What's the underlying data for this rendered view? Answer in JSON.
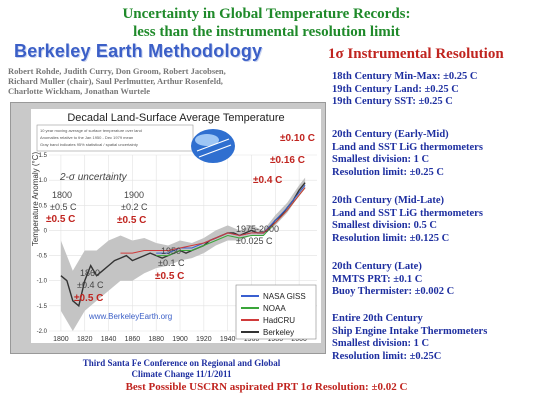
{
  "title_line1": "Uncertainty in Global Temperature Records:",
  "title_line2": "less than the instrumental resolution limit",
  "methodology": "Berkeley Earth Methodology",
  "authors": [
    "Robert Rohde, Judith Curry, Don Groom, Robert Jacobsen,",
    "Richard Muller (chair), Saul Perlmutter, Arthur Rosenfeld,",
    "Charlotte Wickham, Jonathan Wurtele"
  ],
  "chart": {
    "title": "Decadal Land-Surface Average Temperature",
    "ylabel": "Temperature Anomaly (°C)",
    "info_lines": [
      "10 year moving average of surface temperature over land",
      "Anomalies relative to the Jan 1950 - Dec 1979 mean",
      "Gray band indicates 95% statistical / spatial uncertainty"
    ],
    "website": "www.BerkeleyEarth.org",
    "legend": [
      "NASA GISS",
      "NOAA",
      "HadCRU",
      "Berkeley"
    ],
    "legend_colors": [
      "#3a5fd0",
      "#3aa53a",
      "#d03a3a",
      "#333333"
    ],
    "x_ticks": [
      "1800",
      "1820",
      "1840",
      "1860",
      "1880",
      "1900",
      "1920",
      "1940",
      "1960",
      "1980",
      "2000"
    ],
    "y_ticks": [
      "1.5",
      "1.0",
      "0.5",
      "0",
      "-0.5",
      "-1.0",
      "-1.5",
      "-2.0"
    ]
  },
  "annotations": {
    "sigma": "2-σ uncertainty",
    "y1800_year": "1800",
    "y1800_pm": "±0.5 C",
    "y1800_red": "±0.5 C",
    "y1860_year": "1860",
    "y1860_pm": "±0.4 C",
    "y1860_red": "±0.5 C",
    "y1900_year": "1900",
    "y1900_pm": "±0.2 C",
    "y1900_red": "±0.5 C",
    "y1950_year": "1950",
    "y1950_pm": "±0.1 C",
    "y1950_red": "±0.5 C",
    "y1975_year": "1975-2000",
    "y1975_pm": "±0.025 C",
    "red_top1": "±0.10 C",
    "red_top2": "±0.16 C",
    "red_top3": "±0.4 C"
  },
  "right": {
    "heading": "1σ Instrumental Resolution",
    "c18": "18th Century Min-Max: ±0.25 C",
    "c19land": "19th Century Land:  ±0.25 C",
    "c19sst": "19th Century SST: ±0.25 C",
    "b1_l1": "20th Century (Early-Mid)",
    "b1_l2": "Land and SST LiG thermometers",
    "b1_l3": "Smallest division: 1 C",
    "b1_l4": "Resolution limit:  ±0.25 C",
    "b2_l1": "20th Century (Mid-Late)",
    "b2_l2": "Land and SST LiG thermometers",
    "b2_l3": "Smallest division: 0.5 C",
    "b2_l4": "Resolution limit:  ±0.125 C",
    "b3_l1": "20th Century (Late)",
    "b3_l2": "MMTS PRT: ±0.1 C",
    "b3_l3": "Buoy Thermister: ±0.002 C",
    "b4_l1": "Entire 20th Century",
    "b4_l2": "Ship Engine Intake Thermometers",
    "b4_l3": "Smallest division: 1 C",
    "b4_l4": "Resolution limit: ±0.25C"
  },
  "footer": {
    "line1": "Third Santa Fe Conference on Regional and Global",
    "line2": "Climate Change 11/1/2011",
    "line3": "Best Possible USCRN aspirated PRT 1σ Resolution: ±0.02 C"
  },
  "chart_data": {
    "type": "line",
    "title": "Decadal Land-Surface Average Temperature",
    "xlabel": "",
    "ylabel": "Temperature Anomaly (°C)",
    "xlim": [
      1790,
      2015
    ],
    "ylim": [
      -2.0,
      1.5
    ],
    "series": [
      {
        "name": "Berkeley",
        "x": [
          1800,
          1805,
          1810,
          1815,
          1820,
          1825,
          1830,
          1835,
          1840,
          1845,
          1850,
          1855,
          1860,
          1865,
          1870,
          1875,
          1880,
          1885,
          1890,
          1895,
          1900,
          1905,
          1910,
          1915,
          1920,
          1925,
          1930,
          1935,
          1940,
          1945,
          1950,
          1955,
          1960,
          1965,
          1970,
          1975,
          1980,
          1985,
          1990,
          1995,
          2000,
          2005
        ],
        "y": [
          -0.9,
          -1.0,
          -1.4,
          -1.5,
          -1.0,
          -0.7,
          -0.9,
          -0.8,
          -0.7,
          -0.6,
          -0.55,
          -0.5,
          -0.6,
          -0.55,
          -0.5,
          -0.45,
          -0.5,
          -0.55,
          -0.5,
          -0.45,
          -0.4,
          -0.45,
          -0.4,
          -0.35,
          -0.3,
          -0.2,
          -0.15,
          -0.1,
          -0.05,
          -0.05,
          -0.1,
          -0.05,
          0.0,
          -0.05,
          -0.05,
          0.05,
          0.2,
          0.3,
          0.45,
          0.6,
          0.8,
          0.95
        ]
      },
      {
        "name": "NASA GISS",
        "x": [
          1880,
          1890,
          1900,
          1910,
          1920,
          1930,
          1940,
          1950,
          1960,
          1970,
          1980,
          1990,
          2000,
          2005
        ],
        "y": [
          -0.45,
          -0.45,
          -0.35,
          -0.35,
          -0.25,
          -0.15,
          -0.05,
          -0.1,
          -0.05,
          -0.05,
          0.2,
          0.45,
          0.75,
          0.9
        ]
      },
      {
        "name": "NOAA",
        "x": [
          1880,
          1890,
          1900,
          1910,
          1920,
          1930,
          1940,
          1950,
          1960,
          1970,
          1980,
          1990,
          2000,
          2005
        ],
        "y": [
          -0.5,
          -0.5,
          -0.4,
          -0.4,
          -0.3,
          -0.2,
          -0.1,
          -0.15,
          -0.1,
          -0.1,
          0.15,
          0.4,
          0.7,
          0.85
        ]
      },
      {
        "name": "HadCRU",
        "x": [
          1850,
          1860,
          1870,
          1880,
          1890,
          1900,
          1910,
          1920,
          1930,
          1940,
          1950,
          1960,
          1970,
          1980,
          1990,
          2000,
          2005
        ],
        "y": [
          -0.45,
          -0.45,
          -0.4,
          -0.4,
          -0.4,
          -0.35,
          -0.3,
          -0.25,
          -0.15,
          -0.05,
          -0.1,
          -0.05,
          -0.05,
          0.15,
          0.4,
          0.7,
          0.85
        ]
      }
    ],
    "uncertainty_band": {
      "x": [
        1800,
        1810,
        1820,
        1830,
        1840,
        1850,
        1860,
        1870,
        1880,
        1890,
        1900,
        1910,
        1920,
        1930,
        1940,
        1950,
        1960,
        1970,
        1980,
        1990,
        2000,
        2005
      ],
      "lower": [
        -1.6,
        -2.0,
        -1.6,
        -1.4,
        -1.2,
        -1.0,
        -1.0,
        -0.85,
        -0.75,
        -0.7,
        -0.6,
        -0.55,
        -0.45,
        -0.3,
        -0.2,
        -0.2,
        -0.1,
        -0.1,
        0.1,
        0.35,
        0.7,
        0.85
      ],
      "upper": [
        -0.2,
        -0.8,
        -0.4,
        -0.4,
        -0.2,
        -0.1,
        -0.2,
        -0.15,
        -0.25,
        -0.3,
        -0.2,
        -0.25,
        -0.15,
        0.0,
        0.1,
        0.0,
        0.1,
        0.0,
        0.3,
        0.55,
        0.9,
        1.05
      ]
    }
  }
}
